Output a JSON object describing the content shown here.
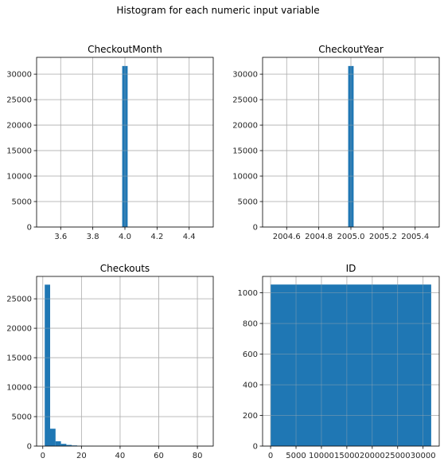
{
  "figure": {
    "suptitle": "Histogram for each numeric input variable"
  },
  "colors": {
    "bar": "#1f77b4",
    "grid": "#b0b0b0",
    "axis": "#000000"
  },
  "chart_data": [
    {
      "type": "bar",
      "title": "CheckoutMonth",
      "grid": true,
      "xlim": [
        3.45,
        4.55
      ],
      "ylim": [
        0,
        33300
      ],
      "xticks": [
        3.6,
        3.8,
        4.0,
        4.2,
        4.4
      ],
      "xticklabels": [
        "3.6",
        "3.8",
        "4.0",
        "4.2",
        "4.4"
      ],
      "yticks": [
        0,
        5000,
        10000,
        15000,
        20000,
        25000,
        30000
      ],
      "yticklabels": [
        "0",
        "5000",
        "10000",
        "15000",
        "20000",
        "25000",
        "30000"
      ],
      "bins": [
        [
          3.983,
          4.017,
          31600
        ]
      ]
    },
    {
      "type": "bar",
      "title": "CheckoutYear",
      "grid": true,
      "xlim": [
        2004.45,
        2005.55
      ],
      "ylim": [
        0,
        33300
      ],
      "xticks": [
        2004.6,
        2004.8,
        2005.0,
        2005.2,
        2005.4
      ],
      "xticklabels": [
        "2004.6",
        "2004.8",
        "2005.0",
        "2005.2",
        "2005.4"
      ],
      "yticks": [
        0,
        5000,
        10000,
        15000,
        20000,
        25000,
        30000
      ],
      "yticklabels": [
        "0",
        "5000",
        "10000",
        "15000",
        "20000",
        "25000",
        "30000"
      ],
      "bins": [
        [
          2004.983,
          2005.017,
          31600
        ]
      ]
    },
    {
      "type": "bar",
      "title": "Checkouts",
      "grid": true,
      "xlim": [
        -3.2,
        88.2
      ],
      "ylim": [
        0,
        28800
      ],
      "xticks": [
        0,
        20,
        40,
        60,
        80
      ],
      "xticklabels": [
        "0",
        "20",
        "40",
        "60",
        "80"
      ],
      "yticks": [
        0,
        5000,
        10000,
        15000,
        20000,
        25000
      ],
      "yticklabels": [
        "0",
        "5000",
        "10000",
        "15000",
        "20000",
        "25000"
      ],
      "bins": [
        [
          1.0,
          3.8,
          27400
        ],
        [
          3.8,
          6.6,
          2950
        ],
        [
          6.6,
          9.4,
          820
        ],
        [
          9.4,
          12.2,
          380
        ],
        [
          12.2,
          15.0,
          200
        ],
        [
          15.0,
          17.8,
          110
        ],
        [
          17.8,
          20.6,
          60
        ],
        [
          20.6,
          23.4,
          40
        ],
        [
          23.4,
          26.2,
          25
        ],
        [
          26.2,
          29.0,
          15
        ],
        [
          29.0,
          31.8,
          10
        ],
        [
          31.8,
          34.6,
          8
        ]
      ]
    },
    {
      "type": "bar",
      "title": "ID",
      "grid": true,
      "xlim": [
        -1580,
        33180
      ],
      "ylim": [
        0,
        1107
      ],
      "xticks": [
        0,
        5000,
        10000,
        15000,
        20000,
        25000,
        30000
      ],
      "xticklabels": [
        "0",
        "5000",
        "10000",
        "15000",
        "20000",
        "25000",
        "30000"
      ],
      "yticks": [
        0,
        200,
        400,
        600,
        800,
        1000
      ],
      "yticklabels": [
        "0",
        "200",
        "400",
        "600",
        "800",
        "1000"
      ],
      "bins": [
        [
          0,
          31600,
          1054
        ]
      ]
    }
  ]
}
